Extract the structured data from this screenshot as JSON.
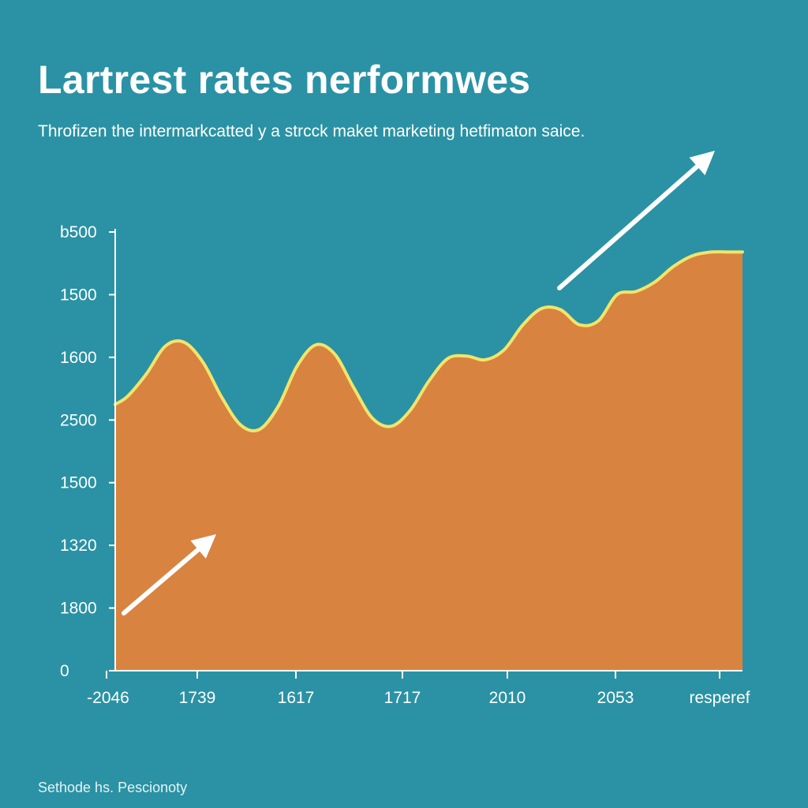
{
  "title": "Lartrest rates nerformwes",
  "subtitle": "Throfizen the intermarkcatted y a strcck maket marketing hetfimaton saice.",
  "source": "Sethode hs. Pescionoty",
  "colors": {
    "background": "#2a92a4",
    "area_fill": "#d98340",
    "line": "#f2e46a",
    "axis": "#ffffff",
    "arrows": "#ffffff"
  },
  "chart_data": {
    "type": "area",
    "x_tick_labels": [
      "-2046",
      "1739",
      "1617",
      "1717",
      "2010",
      "2053",
      "resperef"
    ],
    "y_tick_labels": [
      "0",
      "1800",
      "1320",
      "1500",
      "2500",
      "1600",
      "1500",
      "b500"
    ],
    "x_range": [
      0,
      100
    ],
    "y_range": [
      0,
      7
    ],
    "series": [
      {
        "x": [
          0,
          2,
          5,
          8,
          11,
          14,
          17,
          20,
          23,
          26,
          29,
          32,
          35,
          38,
          41,
          44,
          47,
          50,
          53,
          56,
          59,
          62,
          65,
          68,
          71,
          74,
          77,
          80,
          83,
          86,
          89,
          92,
          95,
          98,
          100
        ],
        "y": [
          4.25,
          4.38,
          4.74,
          5.18,
          5.24,
          4.92,
          4.36,
          3.92,
          3.85,
          4.22,
          4.86,
          5.2,
          5.05,
          4.52,
          4.03,
          3.9,
          4.15,
          4.62,
          4.98,
          5.02,
          4.96,
          5.12,
          5.52,
          5.78,
          5.76,
          5.52,
          5.58,
          6.0,
          6.05,
          6.2,
          6.45,
          6.62,
          6.68,
          6.68,
          6.68
        ]
      }
    ],
    "annotations": [
      "upward arrow lower-left",
      "upward arrow top-right"
    ],
    "grid": false,
    "legend": "none"
  }
}
